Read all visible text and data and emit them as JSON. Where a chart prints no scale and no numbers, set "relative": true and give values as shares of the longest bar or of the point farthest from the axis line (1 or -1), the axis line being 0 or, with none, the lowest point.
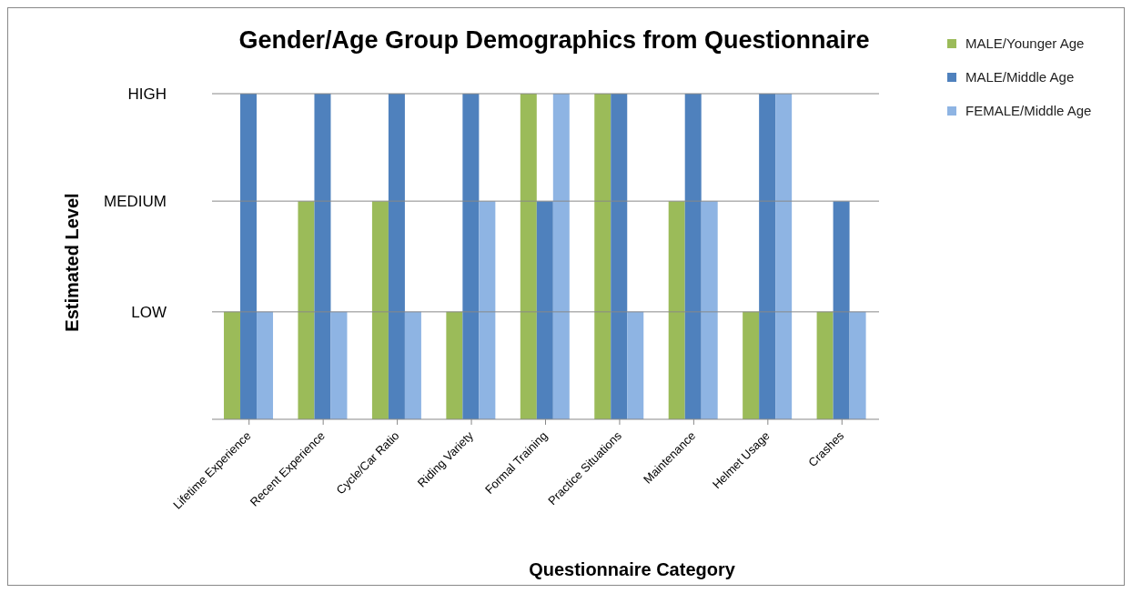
{
  "chart_data": {
    "type": "bar",
    "title": "Gender/Age Group Demographics from Questionnaire",
    "xlabel": "Questionnaire Category",
    "ylabel": "Estimated Level",
    "categories": [
      "Lifetime Experience",
      "Recent Experience",
      "Cycle/Car Ratio",
      "Riding Variety",
      "Formal Training",
      "Practice Situations",
      "Maintenance",
      "Helmet Usage",
      "Crashes"
    ],
    "relative": true,
    "series": [
      {
        "name": "MALE/Younger Age",
        "color": "#9bbb59",
        "values": [
          0.33,
          0.67,
          0.67,
          0.33,
          1,
          1,
          0.67,
          0.33,
          0.33
        ]
      },
      {
        "name": "MALE/Middle Age",
        "color": "#4f81bd",
        "values": [
          1,
          1,
          1,
          1,
          0.67,
          1,
          1,
          1,
          0.67
        ]
      },
      {
        "name": "FEMALE/Middle Age",
        "color": "#8eb4e3",
        "values": [
          0.33,
          0.33,
          0.33,
          0.67,
          1,
          0.33,
          0.67,
          1,
          0.33
        ]
      }
    ],
    "ref_lines": [
      {
        "axis": "y",
        "value": 0.33,
        "label": "LOW",
        "color": "#888888"
      },
      {
        "axis": "y",
        "value": 0.67,
        "label": "MEDIUM",
        "color": "#888888"
      },
      {
        "axis": "y",
        "value": 1,
        "label": "HIGH",
        "color": "#888888"
      }
    ],
    "legend": "top right"
  }
}
